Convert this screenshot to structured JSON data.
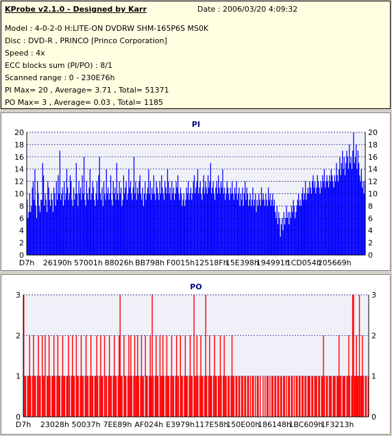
{
  "info": {
    "title": "KProbe v2.1.0 - Designed by Karr",
    "date": "Date : 2006/03/20 4:09:32",
    "lines": [
      "Model : 4-0-2-0 H:LITE-ON DVDRW SHM-165P6S MS0K",
      "Disc : DVD-R , PRINCO [Princo Corporation]",
      "Speed : 4x",
      "ECC blocks sum (PI/PO) : 8/1",
      "Scanned range : 0 - 230E76h",
      "PI Max= 20 , Average= 3.71 , Total= 51371",
      "PO Max= 3 , Average= 0.03 , Total= 1185"
    ]
  },
  "colors": {
    "pi": "#0000ff",
    "po": "#ff0000",
    "grid": "#000080",
    "background": "#d4d0c8"
  },
  "chart_data": [
    {
      "type": "bar",
      "title": "PI",
      "ylim": [
        0,
        20
      ],
      "yticks": [
        "0",
        "2",
        "4",
        "6",
        "8",
        "10",
        "12",
        "14",
        "16",
        "18",
        "20"
      ],
      "xticks": [
        "D7h",
        "26190h",
        "57001h",
        "88026h",
        "BB798h",
        "F0015h",
        "12518Fh",
        "15E398h",
        "194991h",
        "1CD054h",
        "205669h"
      ],
      "grid": true,
      "series": [
        {
          "values": [
            9,
            6,
            7,
            10,
            7,
            8,
            11,
            12,
            9,
            14,
            8,
            6,
            12,
            10,
            8,
            7,
            9,
            9,
            15,
            13,
            8,
            10,
            9,
            7,
            12,
            11,
            9,
            8,
            10,
            9,
            7,
            11,
            10,
            8,
            12,
            9,
            13,
            10,
            17,
            9,
            10,
            11,
            8,
            12,
            9,
            10,
            14,
            11,
            9,
            10,
            13,
            12,
            9,
            8,
            11,
            9,
            10,
            15,
            10,
            8,
            12,
            10,
            11,
            9,
            13,
            10,
            16,
            9,
            8,
            12,
            10,
            9,
            11,
            14,
            9,
            10,
            12,
            11,
            9,
            8,
            10,
            12,
            9,
            13,
            16,
            10,
            9,
            11,
            8,
            12,
            10,
            9,
            14,
            10,
            11,
            9,
            10,
            13,
            9,
            8,
            12,
            10,
            11,
            9,
            15,
            10,
            9,
            12,
            10,
            11,
            8,
            9,
            13,
            10,
            11,
            12,
            9,
            10,
            14,
            11,
            12,
            10,
            9,
            11,
            16,
            10,
            12,
            9,
            11,
            10,
            12,
            13,
            10,
            9,
            11,
            8,
            10,
            12,
            9,
            10,
            11,
            14,
            10,
            12,
            9,
            11,
            10,
            13,
            10,
            9,
            12,
            11,
            10,
            9,
            12,
            10,
            13,
            11,
            10,
            9,
            12,
            11,
            10,
            14,
            12,
            10,
            11,
            9,
            12,
            10,
            11,
            9,
            10,
            12,
            11,
            13,
            10,
            9,
            11,
            10,
            8,
            9,
            10,
            8,
            9,
            11,
            10,
            12,
            9,
            10,
            11,
            9,
            10,
            12,
            13,
            10,
            11,
            12,
            14,
            10,
            11,
            12,
            10,
            9,
            11,
            13,
            10,
            12,
            11,
            10,
            13,
            11,
            12,
            15,
            10,
            11,
            12,
            10,
            9,
            11,
            12,
            10,
            13,
            11,
            10,
            12,
            11,
            14,
            10,
            11,
            9,
            10,
            12,
            11,
            10,
            9,
            11,
            10,
            12,
            10,
            9,
            11,
            10,
            12,
            9,
            10,
            11,
            8,
            10,
            9,
            11,
            8,
            10,
            12,
            9,
            11,
            10,
            8,
            9,
            10,
            8,
            9,
            11,
            8,
            9,
            10,
            7,
            9,
            8,
            10,
            9,
            8,
            11,
            9,
            10,
            9,
            8,
            10,
            9,
            8,
            11,
            9,
            10,
            8,
            9,
            10,
            8,
            9,
            7,
            6,
            8,
            5,
            7,
            6,
            3,
            5,
            6,
            4,
            7,
            5,
            6,
            8,
            6,
            7,
            5,
            7,
            6,
            8,
            7,
            9,
            8,
            6,
            7,
            8,
            9,
            10,
            8,
            9,
            8,
            10,
            11,
            9,
            10,
            12,
            9,
            10,
            11,
            10,
            12,
            11,
            10,
            12,
            13,
            11,
            12,
            10,
            11,
            13,
            12,
            11,
            10,
            12,
            11,
            13,
            12,
            14,
            11,
            12,
            13,
            12,
            11,
            13,
            12,
            14,
            13,
            12,
            11,
            13,
            12,
            15,
            13,
            12,
            14,
            16,
            13,
            15,
            17,
            14,
            16,
            13,
            15,
            17,
            16,
            14,
            18,
            15,
            16,
            14,
            17,
            20,
            15,
            16,
            18,
            14,
            17,
            15,
            13,
            12,
            14,
            11,
            12,
            10,
            12
          ]
        }
      ]
    },
    {
      "type": "bar",
      "title": "PO",
      "ylim": [
        0,
        3
      ],
      "yticks": [
        "0",
        "1",
        "2",
        "3"
      ],
      "xticks": [
        "D7h",
        "23028h",
        "50037h",
        "7EE89h",
        "AF024h",
        "E3979h",
        "117E58h",
        "150E00h",
        "186148h",
        "1BC609h",
        "1F3213h"
      ],
      "grid": true,
      "series": [
        {
          "values": [
            3,
            1,
            1,
            0,
            1,
            1,
            2,
            1,
            0,
            1,
            2,
            1,
            1,
            0,
            1,
            2,
            1,
            1,
            0,
            2,
            1,
            1,
            2,
            0,
            1,
            1,
            2,
            1,
            0,
            1,
            1,
            2,
            1,
            0,
            1,
            2,
            1,
            1,
            0,
            1,
            2,
            1,
            1,
            0,
            1,
            1,
            2,
            1,
            0,
            1,
            2,
            1,
            1,
            0,
            2,
            1,
            1,
            0,
            1,
            2,
            1,
            1,
            0,
            1,
            2,
            1,
            1,
            0,
            1,
            2,
            1,
            1,
            0,
            1,
            1,
            2,
            1,
            0,
            1,
            2,
            1,
            1,
            0,
            2,
            1,
            1,
            0,
            1,
            2,
            1,
            1,
            0,
            1,
            2,
            1,
            1,
            0,
            1,
            2,
            3,
            1,
            1,
            0,
            2,
            1,
            1,
            0,
            1,
            2,
            1,
            2,
            1,
            0,
            1,
            2,
            1,
            1,
            2,
            1,
            0,
            1,
            2,
            1,
            1,
            0,
            2,
            1,
            1,
            0,
            1,
            2,
            1,
            3,
            1,
            0,
            1,
            2,
            1,
            1,
            0,
            2,
            1,
            1,
            2,
            1,
            0,
            1,
            2,
            1,
            1,
            0,
            1,
            2,
            1,
            1,
            0,
            1,
            2,
            1,
            1,
            0,
            2,
            1,
            1,
            0,
            1,
            2,
            1,
            1,
            0,
            1,
            2,
            1,
            1,
            0,
            3,
            1,
            1,
            2,
            1,
            0,
            1,
            2,
            1,
            1,
            0,
            1,
            3,
            1,
            0,
            1,
            2,
            1,
            1,
            0,
            1,
            2,
            1,
            1,
            0,
            1,
            1,
            2,
            1,
            0,
            1,
            2,
            1,
            1,
            0,
            1,
            1,
            0,
            1,
            2,
            1,
            1,
            0,
            1,
            1,
            0,
            1,
            1,
            0,
            1,
            1,
            0,
            1,
            1,
            0,
            1,
            1,
            0,
            1,
            0,
            1,
            1,
            0,
            1,
            0,
            1,
            1,
            0,
            1,
            0,
            0,
            1,
            0,
            1,
            0,
            1,
            1,
            0,
            1,
            0,
            1,
            1,
            0,
            1,
            1,
            0,
            1,
            1,
            0,
            1,
            1,
            0,
            1,
            1,
            0,
            1,
            0,
            1,
            1,
            0,
            1,
            1,
            0,
            1,
            0,
            1,
            1,
            0,
            1,
            1,
            0,
            1,
            1,
            0,
            1,
            1,
            0,
            1,
            1,
            1,
            0,
            1,
            1,
            0,
            1,
            1,
            1,
            0,
            1,
            1,
            0,
            1,
            1,
            2,
            1,
            0,
            1,
            1,
            0,
            1,
            1,
            1,
            0,
            1,
            1,
            1,
            0,
            1,
            1,
            2,
            1,
            1,
            0,
            1,
            1,
            1,
            0,
            1,
            1,
            2,
            1,
            0,
            1,
            3,
            3,
            1,
            1,
            2,
            1,
            1,
            3,
            1,
            1,
            2,
            1,
            0,
            1,
            1,
            0,
            1
          ]
        }
      ]
    }
  ]
}
